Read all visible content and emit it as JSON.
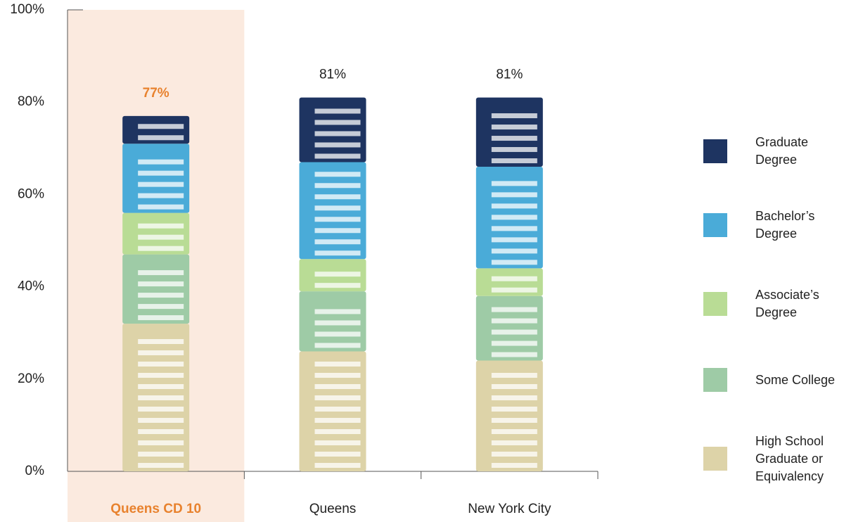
{
  "chart_data": {
    "type": "stacked-bar",
    "categories": [
      "Queens CD 10",
      "Queens",
      "New York City"
    ],
    "highlight": 0,
    "highlight_color": "#e8822e",
    "highlight_band": "#fbeadf",
    "series": [
      {
        "name": "High School Graduate or Equivalency",
        "color": "#ddd3a8",
        "values": [
          32,
          26,
          24
        ]
      },
      {
        "name": "Some College",
        "color": "#9ecba6",
        "values": [
          15,
          13,
          14
        ]
      },
      {
        "name": "Associate’s Degree",
        "color": "#b9dc95",
        "values": [
          9,
          7,
          6
        ]
      },
      {
        "name": "Bachelor’s Degree",
        "color": "#4aabd8",
        "values": [
          15,
          21,
          22
        ]
      },
      {
        "name": "Graduate Degree",
        "color": "#1e3461",
        "values": [
          6,
          14,
          15
        ]
      }
    ],
    "totals": [
      77,
      81,
      81
    ],
    "total_labels": [
      "77%",
      "81%",
      "81%"
    ],
    "ylim": [
      0,
      100
    ],
    "yticks": [
      {
        "value": 0,
        "label": "0%"
      },
      {
        "value": 20,
        "label": "20%"
      },
      {
        "value": 40,
        "label": "40%"
      },
      {
        "value": 60,
        "label": "60%"
      },
      {
        "value": 80,
        "label": "80%"
      },
      {
        "value": 100,
        "label": "100%"
      }
    ]
  }
}
